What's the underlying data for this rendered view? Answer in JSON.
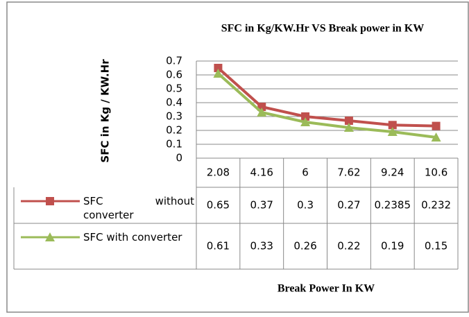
{
  "chart_data": {
    "type": "line",
    "title": "SFC in Kg/KW.Hr VS Break power in KW",
    "y_label": "SFC in Kg / KW.Hr",
    "x_label": "Break Power In KW",
    "categories": [
      "2.08",
      "4.16",
      "6",
      "7.62",
      "9.24",
      "10.6"
    ],
    "series": [
      {
        "name": "SFC without converter",
        "color": "#c0504d",
        "marker": "square",
        "values": [
          0.65,
          0.37,
          0.3,
          0.27,
          0.2385,
          0.232
        ]
      },
      {
        "name": "SFC with converter",
        "color": "#9bbb59",
        "marker": "triangle",
        "values": [
          0.61,
          0.33,
          0.26,
          0.22,
          0.19,
          0.15
        ]
      }
    ],
    "ylim": [
      0,
      0.7
    ],
    "yticks": [
      0,
      0.1,
      0.2,
      0.3,
      0.4,
      0.5,
      0.6,
      0.7
    ],
    "grid": true
  }
}
